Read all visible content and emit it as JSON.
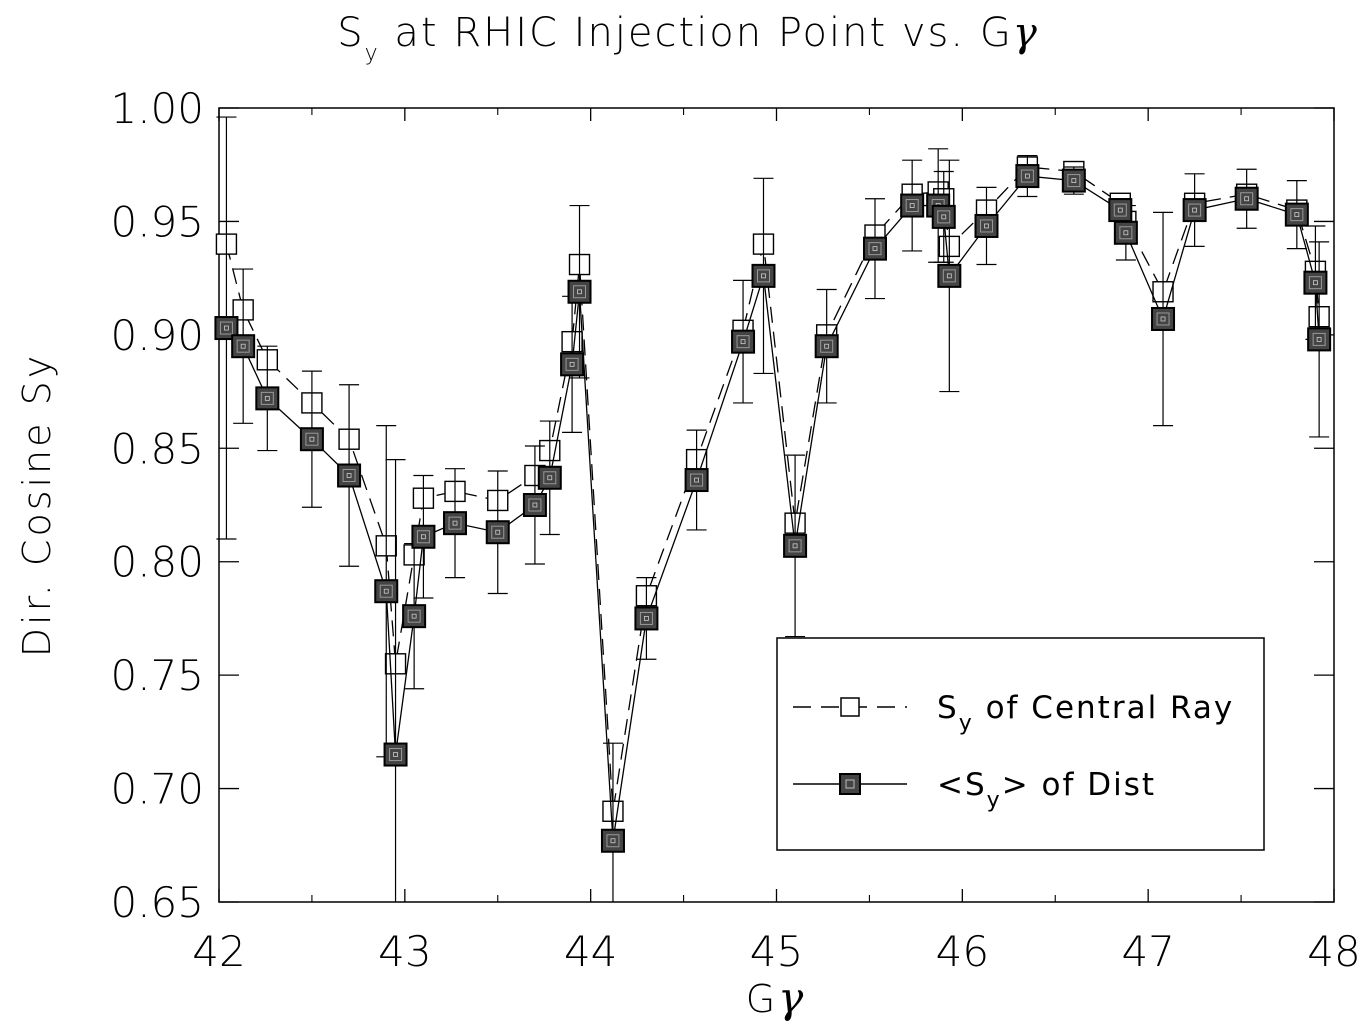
{
  "chart_data": {
    "type": "scatter",
    "title": {
      "pre": "S",
      "sub": "y",
      "post": " at RHIC Injection Point vs. G",
      "gamma": "γ"
    },
    "xlabel": {
      "text": "G",
      "gamma": "γ"
    },
    "ylabel": "Dir. Cosine Sy",
    "xlim": [
      42,
      48
    ],
    "ylim": [
      0.65,
      1.0
    ],
    "xticks": [
      "42",
      "43",
      "44",
      "45",
      "46",
      "47",
      "48"
    ],
    "yticks": [
      "0.65",
      "0.70",
      "0.75",
      "0.80",
      "0.85",
      "0.90",
      "0.95",
      "1.00"
    ],
    "grid": false,
    "legend_position": "bottom-right",
    "legend": [
      {
        "pre": "S",
        "sub": "y",
        "post": " of Central Ray"
      },
      {
        "pre": "<S",
        "sub": "y",
        "post": "> of Dist"
      }
    ],
    "series": [
      {
        "marker": "open-square",
        "line": "dashed",
        "x": [
          42.04,
          42.13,
          42.26,
          42.5,
          42.7,
          42.9,
          42.95,
          43.05,
          43.1,
          43.27,
          43.5,
          43.7,
          43.78,
          43.9,
          43.94,
          44.12,
          44.3,
          44.57,
          44.82,
          44.93,
          45.1,
          45.27,
          45.53,
          45.73,
          45.87,
          45.9,
          45.93,
          46.13,
          46.35,
          46.6,
          46.85,
          46.88,
          47.08,
          47.25,
          47.53,
          47.8,
          47.9,
          47.92
        ],
        "y": [
          0.94,
          0.911,
          0.889,
          0.87,
          0.854,
          0.807,
          0.755,
          0.803,
          0.828,
          0.831,
          0.827,
          0.838,
          0.849,
          0.897,
          0.931,
          0.69,
          0.785,
          0.845,
          0.902,
          0.94,
          0.817,
          0.9,
          0.944,
          0.962,
          0.963,
          0.96,
          0.939,
          0.955,
          0.974,
          0.972,
          0.958,
          0.95,
          0.919,
          0.958,
          0.962,
          0.955,
          0.928,
          0.908
        ]
      },
      {
        "marker": "filled-square",
        "line": "solid",
        "x": [
          42.04,
          42.13,
          42.26,
          42.5,
          42.7,
          42.9,
          42.95,
          43.05,
          43.1,
          43.27,
          43.5,
          43.7,
          43.78,
          43.9,
          43.94,
          44.12,
          44.3,
          44.57,
          44.82,
          44.93,
          45.1,
          45.27,
          45.53,
          45.73,
          45.87,
          45.9,
          45.93,
          46.13,
          46.35,
          46.6,
          46.85,
          46.88,
          47.08,
          47.25,
          47.53,
          47.8,
          47.9,
          47.92
        ],
        "y": [
          0.903,
          0.895,
          0.872,
          0.854,
          0.838,
          0.787,
          0.715,
          0.776,
          0.811,
          0.817,
          0.813,
          0.825,
          0.837,
          0.887,
          0.919,
          0.677,
          0.775,
          0.836,
          0.897,
          0.926,
          0.807,
          0.895,
          0.938,
          0.957,
          0.957,
          0.952,
          0.926,
          0.948,
          0.97,
          0.968,
          0.955,
          0.945,
          0.907,
          0.955,
          0.96,
          0.953,
          0.923,
          0.898
        ],
        "err": [
          0.093,
          0.034,
          0.023,
          0.03,
          0.04,
          0.073,
          0.13,
          0.032,
          0.027,
          0.024,
          0.027,
          0.026,
          0.025,
          0.03,
          0.038,
          0.043,
          0.018,
          0.022,
          0.027,
          0.043,
          0.04,
          0.025,
          0.022,
          0.02,
          0.025,
          0.02,
          0.051,
          0.017,
          0.009,
          0.006,
          0.005,
          0.012,
          0.047,
          0.016,
          0.013,
          0.015,
          0.025,
          0.043
        ]
      }
    ]
  }
}
